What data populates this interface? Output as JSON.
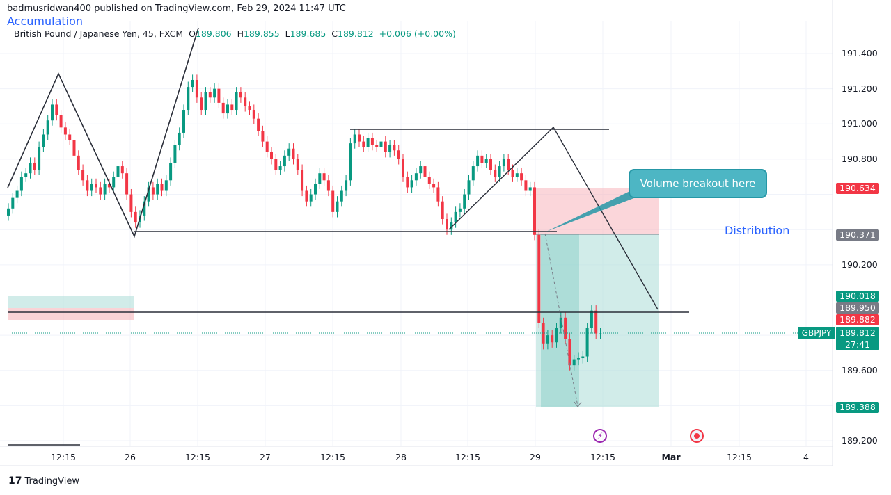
{
  "header": {
    "published": "badmusridwan400 published on TradingView.com, Feb 29, 2024 11:47 UTC"
  },
  "legend": {
    "instrument": "British Pound / Japanese Yen, 45, FXCM",
    "open_label": "O",
    "open": "189.806",
    "high_label": "H",
    "high": "189.855",
    "low_label": "L",
    "low": "189.685",
    "close_label": "C",
    "close": "189.812",
    "change": "+0.006 (+0.00%)"
  },
  "annotations": {
    "accumulation": "Accumulation",
    "distribution": "Distribution",
    "callout": "Volume breakout here"
  },
  "price_axis": {
    "ticks": [
      "191.400",
      "191.200",
      "191.000",
      "190.800",
      "190.200",
      "189.600",
      "189.200"
    ],
    "labels": [
      {
        "value": "190.634",
        "color": "#f23645"
      },
      {
        "value": "190.371",
        "color": "#787b86"
      },
      {
        "value": "190.018",
        "color": "#089981"
      },
      {
        "value": "189.950",
        "color": "#787b86"
      },
      {
        "value": "189.882",
        "color": "#f23645"
      },
      {
        "value": "189.388",
        "color": "#089981"
      }
    ],
    "current": {
      "symbol": "GBPJPY",
      "price": "189.812",
      "countdown": "27:41",
      "color": "#089981"
    }
  },
  "time_axis": {
    "ticks": [
      "12:15",
      "26",
      "12:15",
      "27",
      "12:15",
      "28",
      "12:15",
      "29",
      "12:15",
      "Mar",
      "12:15",
      "4"
    ]
  },
  "footer": {
    "brand": "TradingView"
  },
  "colors": {
    "up": "#089981",
    "down": "#f23645"
  },
  "chart_data": {
    "type": "candlestick",
    "symbol": "GBPJPY",
    "interval": "45",
    "ylim": [
      189.2,
      191.4
    ],
    "closes": [
      190.52,
      190.58,
      190.62,
      190.7,
      190.72,
      190.78,
      190.74,
      190.87,
      190.94,
      191.02,
      191.11,
      191.05,
      190.98,
      190.94,
      190.91,
      190.82,
      190.74,
      190.68,
      190.62,
      190.66,
      190.64,
      190.6,
      190.66,
      190.64,
      190.7,
      190.76,
      190.72,
      190.6,
      190.5,
      190.44,
      190.48,
      190.56,
      190.64,
      190.6,
      190.66,
      190.62,
      190.68,
      190.78,
      190.88,
      190.95,
      191.08,
      191.21,
      191.25,
      191.15,
      191.08,
      191.18,
      191.15,
      191.2,
      191.12,
      191.06,
      191.11,
      191.08,
      191.18,
      191.15,
      191.1,
      191.08,
      191.03,
      190.96,
      190.9,
      190.84,
      190.8,
      190.74,
      190.76,
      190.82,
      190.86,
      190.8,
      190.74,
      190.62,
      190.56,
      190.6,
      190.66,
      190.72,
      190.68,
      190.62,
      190.5,
      190.56,
      190.62,
      190.68,
      190.89,
      190.94,
      190.9,
      190.87,
      190.92,
      190.88,
      190.87,
      190.9,
      190.84,
      190.88,
      190.85,
      190.8,
      190.7,
      190.64,
      190.68,
      190.72,
      190.76,
      190.7,
      190.66,
      190.64,
      190.56,
      190.46,
      190.4,
      190.44,
      190.5,
      190.52,
      190.6,
      190.68,
      190.76,
      190.82,
      190.78,
      190.8,
      190.74,
      190.7,
      190.76,
      190.8,
      190.74,
      190.7,
      190.72,
      190.68,
      190.62,
      190.64,
      190.37,
      189.87,
      189.75,
      189.8,
      189.76,
      189.84,
      189.9,
      189.78,
      189.63,
      189.66,
      189.67,
      189.68,
      189.84,
      189.94,
      189.81,
      189.81
    ]
  }
}
